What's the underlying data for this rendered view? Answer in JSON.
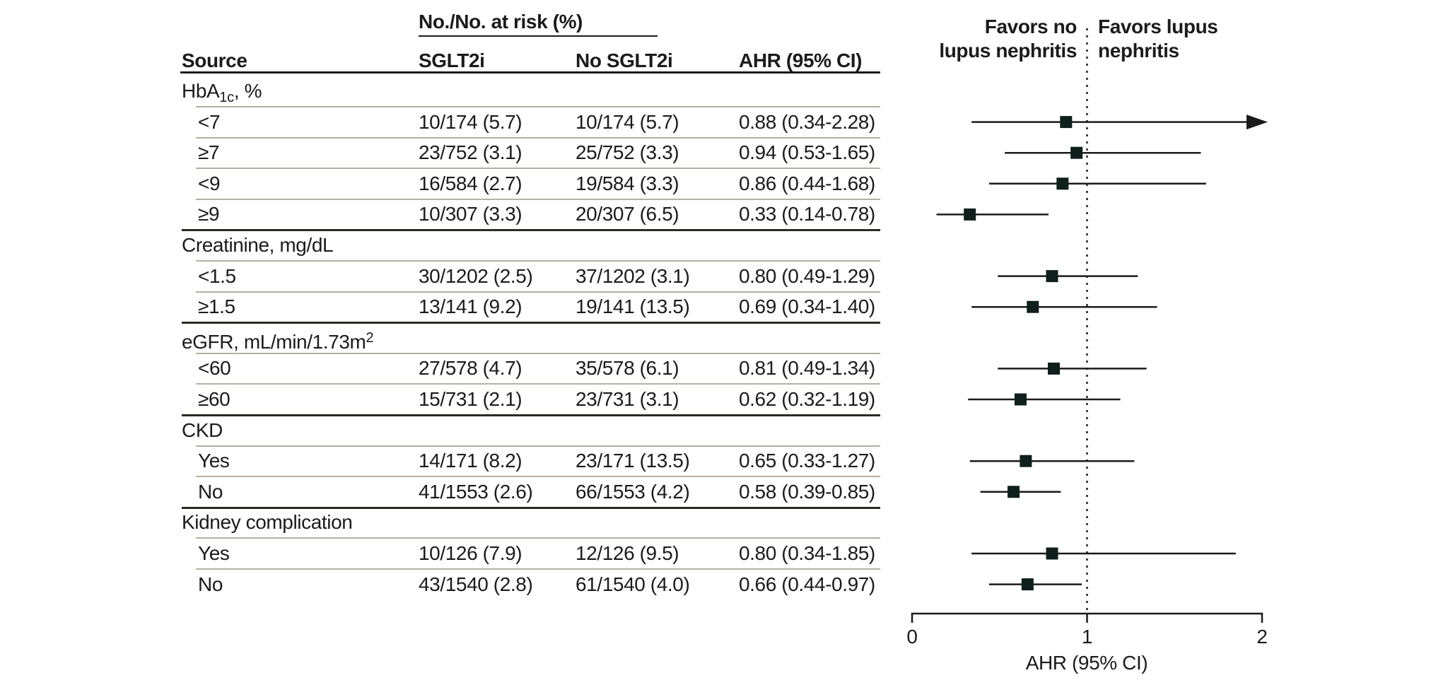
{
  "figure": {
    "colors": {
      "text": "#1b1b1b",
      "separator_light": "#b4b1a2",
      "rule_dark": "#1b1b1b",
      "marker": "#0f1f1b",
      "background": "#ffffff"
    }
  },
  "table_header": {
    "span_label": "No./No. at risk (%)",
    "col_source": "Source",
    "col_sglt2i": "SGLT2i",
    "col_no_sglt2i": "No SGLT2i",
    "col_ahr": "AHR (95% CI)"
  },
  "chart_data": {
    "type": "scatter",
    "variant": "forest",
    "title": "",
    "xlabel": "AHR (95% CI)",
    "xlim": [
      0,
      2
    ],
    "xticks": [
      "0",
      "1",
      "2"
    ],
    "reference_line": 1,
    "favors_left": [
      "Favors no",
      "lupus nephritis"
    ],
    "favors_right": [
      "Favors lupus",
      "nephritis"
    ],
    "sections": [
      {
        "label_parts": [
          {
            "text": "HbA"
          },
          {
            "text": "1c",
            "style": "sub"
          },
          {
            "text": ", %"
          }
        ],
        "rows": [
          {
            "source": "<7",
            "sglt2i": "10/174 (5.7)",
            "no_sglt2i": "10/174 (5.7)",
            "ahr": "0.88 (0.34-2.28)",
            "est": 0.88,
            "lo": 0.34,
            "hi": 2.28
          },
          {
            "source": "≥7",
            "sglt2i": "23/752 (3.1)",
            "no_sglt2i": "25/752 (3.3)",
            "ahr": "0.94 (0.53-1.65)",
            "est": 0.94,
            "lo": 0.53,
            "hi": 1.65
          },
          {
            "source": "<9",
            "sglt2i": "16/584 (2.7)",
            "no_sglt2i": "19/584 (3.3)",
            "ahr": "0.86 (0.44-1.68)",
            "est": 0.86,
            "lo": 0.44,
            "hi": 1.68
          },
          {
            "source": "≥9",
            "sglt2i": "10/307 (3.3)",
            "no_sglt2i": "20/307 (6.5)",
            "ahr": "0.33 (0.14-0.78)",
            "est": 0.33,
            "lo": 0.14,
            "hi": 0.78
          }
        ]
      },
      {
        "label_parts": [
          {
            "text": "Creatinine, mg/dL"
          }
        ],
        "rows": [
          {
            "source": "<1.5",
            "sglt2i": "30/1202 (2.5)",
            "no_sglt2i": "37/1202 (3.1)",
            "ahr": "0.80 (0.49-1.29)",
            "est": 0.8,
            "lo": 0.49,
            "hi": 1.29
          },
          {
            "source": "≥1.5",
            "sglt2i": "13/141 (9.2)",
            "no_sglt2i": "19/141 (13.5)",
            "ahr": "0.69 (0.34-1.40)",
            "est": 0.69,
            "lo": 0.34,
            "hi": 1.4
          }
        ]
      },
      {
        "label_parts": [
          {
            "text": "eGFR, mL/min/1.73m"
          },
          {
            "text": "2",
            "style": "sup"
          }
        ],
        "rows": [
          {
            "source": "<60",
            "sglt2i": "27/578 (4.7)",
            "no_sglt2i": "35/578 (6.1)",
            "ahr": "0.81 (0.49-1.34)",
            "est": 0.81,
            "lo": 0.49,
            "hi": 1.34
          },
          {
            "source": "≥60",
            "sglt2i": "15/731 (2.1)",
            "no_sglt2i": "23/731 (3.1)",
            "ahr": "0.62 (0.32-1.19)",
            "est": 0.62,
            "lo": 0.32,
            "hi": 1.19
          }
        ]
      },
      {
        "label_parts": [
          {
            "text": "CKD"
          }
        ],
        "rows": [
          {
            "source": "Yes",
            "sglt2i": "14/171 (8.2)",
            "no_sglt2i": "23/171 (13.5)",
            "ahr": "0.65 (0.33-1.27)",
            "est": 0.65,
            "lo": 0.33,
            "hi": 1.27
          },
          {
            "source": "No",
            "sglt2i": "41/1553 (2.6)",
            "no_sglt2i": "66/1553 (4.2)",
            "ahr": "0.58 (0.39-0.85)",
            "est": 0.58,
            "lo": 0.39,
            "hi": 0.85
          }
        ]
      },
      {
        "label_parts": [
          {
            "text": "Kidney complication"
          }
        ],
        "rows": [
          {
            "source": "Yes",
            "sglt2i": "10/126 (7.9)",
            "no_sglt2i": "12/126 (9.5)",
            "ahr": "0.80 (0.34-1.85)",
            "est": 0.8,
            "lo": 0.34,
            "hi": 1.85
          },
          {
            "source": "No",
            "sglt2i": "43/1540 (2.8)",
            "no_sglt2i": "61/1540 (4.0)",
            "ahr": "0.66 (0.44-0.97)",
            "est": 0.66,
            "lo": 0.44,
            "hi": 0.97
          }
        ]
      }
    ]
  }
}
